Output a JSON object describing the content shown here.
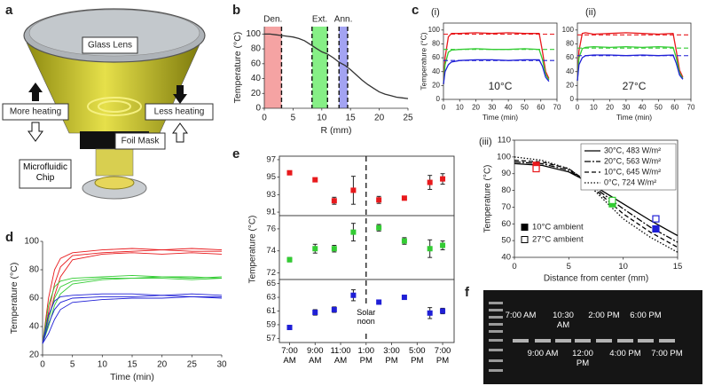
{
  "diagram": {
    "panel": "a",
    "lens": "Glass Lens",
    "more": "More heating",
    "less": "Less heating",
    "mask": "Foil Mask",
    "chip": "Microfluidic Chip"
  },
  "gel": {
    "panel": "f",
    "lanes_top": [
      "7:00 AM",
      "10:30 AM",
      "2:00 PM",
      "6:00 PM"
    ],
    "lanes_bottom": [
      "9:00 AM",
      "12:00 PM",
      "4:00 PM",
      "7:00 PM"
    ]
  },
  "chart_data": [
    {
      "type": "line",
      "panel": "b",
      "xlabel": "R (mm)",
      "ylabel": "Temperature (°C)",
      "xlim": [
        0,
        25
      ],
      "xticks": [
        0,
        5,
        10,
        15,
        20,
        25
      ],
      "ylim": [
        0,
        110
      ],
      "yticks": [
        0,
        20,
        40,
        60,
        80,
        100
      ],
      "x": [
        0,
        1,
        2,
        3,
        4,
        5,
        6,
        7,
        8,
        9,
        10,
        11,
        12,
        13,
        14,
        15,
        16,
        17,
        18,
        19,
        20,
        21,
        22,
        23,
        24,
        25
      ],
      "series": [
        {
          "color": "#333333",
          "values": [
            100,
            100,
            99,
            98,
            97,
            96,
            94,
            91,
            86,
            81,
            76,
            73,
            68,
            62,
            58,
            52,
            45,
            38,
            32,
            27,
            22,
            19,
            17,
            15,
            14,
            13
          ]
        }
      ],
      "bands": [
        {
          "label": "Den.",
          "x": [
            0,
            3
          ],
          "color": "#f5a3a3"
        },
        {
          "label": "Ext.",
          "x": [
            8.3,
            11
          ],
          "color": "#86ef86"
        },
        {
          "label": "Ann.",
          "x": [
            13,
            14.5
          ],
          "color": "#a3a3f2"
        }
      ]
    },
    {
      "type": "line",
      "panel": "c",
      "subtitle": "(i)",
      "annotation": "10°C",
      "xlabel": "Time (min)",
      "ylabel": "Temperature (°C)",
      "xlim": [
        0,
        70
      ],
      "xticks": [
        0,
        10,
        20,
        30,
        40,
        50,
        60,
        70
      ],
      "ylim": [
        0,
        110
      ],
      "yticks": [
        0,
        20,
        40,
        60,
        80,
        100
      ],
      "x": [
        0,
        1,
        3,
        5,
        10,
        20,
        30,
        40,
        50,
        59,
        61,
        63,
        65
      ],
      "series": [
        {
          "color": "#e8191c",
          "target": 94,
          "values": [
            22,
            60,
            90,
            95,
            95,
            96,
            95,
            96,
            95,
            95,
            70,
            40,
            30
          ]
        },
        {
          "color": "#33cc33",
          "target": 72,
          "values": [
            22,
            50,
            68,
            71,
            72,
            73,
            72,
            72,
            73,
            72,
            58,
            36,
            28
          ]
        },
        {
          "color": "#1f1fd6",
          "target": 56,
          "values": [
            22,
            40,
            50,
            54,
            56,
            57,
            57,
            56,
            57,
            57,
            48,
            32,
            26
          ]
        }
      ]
    },
    {
      "type": "line",
      "subtitle": "(ii)",
      "annotation": "27°C",
      "xlabel": "Time (min)",
      "xlim": [
        0,
        70
      ],
      "xticks": [
        0,
        10,
        20,
        30,
        40,
        50,
        60,
        70
      ],
      "ylim": [
        0,
        110
      ],
      "yticks": [
        0,
        20,
        40,
        60,
        80,
        100
      ],
      "x": [
        0,
        1,
        3,
        5,
        10,
        20,
        30,
        40,
        50,
        59,
        61,
        63,
        65
      ],
      "series": [
        {
          "color": "#e8191c",
          "target": 93,
          "values": [
            27,
            70,
            95,
            96,
            94,
            95,
            96,
            95,
            94,
            95,
            70,
            42,
            32
          ]
        },
        {
          "color": "#33cc33",
          "target": 74,
          "values": [
            27,
            60,
            73,
            75,
            76,
            75,
            76,
            75,
            76,
            75,
            60,
            38,
            30
          ]
        },
        {
          "color": "#1f1fd6",
          "target": 63,
          "values": [
            27,
            50,
            60,
            63,
            64,
            64,
            63,
            64,
            63,
            64,
            52,
            35,
            29
          ]
        }
      ]
    },
    {
      "type": "line",
      "subtitle": "(iii)",
      "xlabel": "Distance from center (mm)",
      "ylabel": "Temperature (°C)",
      "legend": "upper right",
      "xlim": [
        0,
        15
      ],
      "xticks": [
        0,
        5,
        10,
        15
      ],
      "ylim": [
        40,
        110
      ],
      "yticks": [
        40,
        50,
        60,
        70,
        80,
        90,
        100,
        110
      ],
      "x": [
        0,
        2.5,
        5,
        6.5,
        7.5,
        10,
        12.5,
        15
      ],
      "series": [
        {
          "name": "30°C, 483 W/m²",
          "color": "#000000",
          "dash": "solid",
          "values": [
            96,
            95,
            91,
            86,
            82,
            72,
            62,
            53
          ]
        },
        {
          "name": "20°C, 563 W/m²",
          "color": "#000000",
          "dash": "dashdot",
          "values": [
            97,
            96,
            92,
            86,
            81,
            69,
            58,
            49
          ]
        },
        {
          "name": "10°C, 645 W/m²",
          "color": "#000000",
          "dash": "dashed",
          "values": [
            98,
            97,
            93,
            86,
            80,
            66,
            55,
            46
          ]
        },
        {
          "name": "0°C, 724 W/m²",
          "color": "#000000",
          "dash": "dotted",
          "values": [
            100,
            98,
            93,
            86,
            79,
            63,
            52,
            43
          ]
        }
      ],
      "markers": [
        {
          "name": "10°C ambient",
          "filled": true,
          "x": [
            2,
            9,
            13
          ],
          "values": [
            95,
            72,
            57
          ],
          "colors": [
            "#e8191c",
            "#33cc33",
            "#1f1fd6"
          ]
        },
        {
          "name": "27°C ambient",
          "filled": false,
          "x": [
            2,
            9,
            13
          ],
          "values": [
            93,
            74,
            63
          ],
          "colors": [
            "#e8191c",
            "#33cc33",
            "#1f1fd6"
          ]
        }
      ]
    },
    {
      "type": "line",
      "panel": "d",
      "xlabel": "Time (min)",
      "ylabel": "Temperature (°C)",
      "xlim": [
        0,
        30
      ],
      "xticks": [
        0,
        5,
        10,
        15,
        20,
        25,
        30
      ],
      "ylim": [
        20,
        100
      ],
      "yticks": [
        20,
        40,
        60,
        80,
        100
      ],
      "x": [
        0,
        1,
        2,
        3,
        5,
        10,
        15,
        20,
        25,
        30
      ],
      "series": [
        {
          "color": "#e8191c",
          "values": [
            28,
            60,
            80,
            88,
            92,
            94,
            95,
            94,
            95,
            94
          ]
        },
        {
          "color": "#e8191c",
          "values": [
            28,
            50,
            70,
            82,
            90,
            92,
            93,
            94,
            93,
            93
          ]
        },
        {
          "color": "#e8191c",
          "values": [
            28,
            45,
            62,
            75,
            87,
            91,
            92,
            91,
            92,
            91
          ]
        },
        {
          "color": "#33cc33",
          "values": [
            28,
            55,
            68,
            72,
            74,
            75,
            76,
            75,
            74,
            75
          ]
        },
        {
          "color": "#33cc33",
          "values": [
            28,
            45,
            60,
            68,
            72,
            74,
            74,
            75,
            75,
            74
          ]
        },
        {
          "color": "#33cc33",
          "values": [
            28,
            40,
            55,
            63,
            70,
            73,
            74,
            74,
            73,
            74
          ]
        },
        {
          "color": "#1f1fd6",
          "values": [
            28,
            48,
            58,
            61,
            62,
            63,
            63,
            62,
            63,
            62
          ]
        },
        {
          "color": "#1f1fd6",
          "values": [
            28,
            42,
            52,
            57,
            60,
            61,
            61,
            62,
            61,
            61
          ]
        },
        {
          "color": "#1f1fd6",
          "values": [
            28,
            35,
            45,
            52,
            57,
            59,
            60,
            60,
            61,
            60
          ]
        }
      ]
    },
    {
      "type": "scatter",
      "panel": "e",
      "ylabel": "Temperature (°C)",
      "annotation": "Solar noon",
      "noon": 13,
      "x": [
        7,
        9,
        10.5,
        12,
        14,
        16,
        18,
        19
      ],
      "xlim": [
        6.2,
        19.9
      ],
      "xticks": [
        {
          "value": 7,
          "label": "7:00 AM"
        },
        {
          "value": 9,
          "label": "9:00 AM"
        },
        {
          "value": 11,
          "label": "11:00 AM"
        },
        {
          "value": 13,
          "label": "1:00 PM"
        },
        {
          "value": 15,
          "label": "3:00 PM"
        },
        {
          "value": 17,
          "label": "5:00 PM"
        },
        {
          "value": 19,
          "label": "7:00 PM"
        }
      ],
      "panels": [
        {
          "ylim": [
            90.6,
            97.4
          ],
          "yticks": [
            91,
            93,
            95,
            97
          ],
          "series": [
            {
              "color": "#e8191c",
              "values": [
                95.5,
                94.7,
                92.3,
                93.5,
                92.4,
                92.6,
                94.4,
                94.8
              ],
              "errors": [
                0.2,
                0.2,
                0.4,
                1.6,
                0.4,
                0.2,
                0.8,
                0.6
              ]
            }
          ]
        },
        {
          "ylim": [
            71.4,
            77.2
          ],
          "yticks": [
            72,
            74,
            76
          ],
          "series": [
            {
              "color": "#33cc33",
              "values": [
                73.2,
                74.2,
                74.2,
                75.7,
                76.1,
                74.9,
                74.2,
                74.5
              ],
              "errors": [
                0.2,
                0.4,
                0.3,
                0.8,
                0.3,
                0.3,
                0.8,
                0.4
              ]
            }
          ]
        },
        {
          "ylim": [
            56.4,
            65.6
          ],
          "yticks": [
            57,
            59,
            61,
            63,
            65
          ],
          "series": [
            {
              "color": "#1f1fd6",
              "values": [
                58.6,
                60.8,
                61.2,
                63.3,
                62.3,
                63.0,
                60.7,
                61.0
              ],
              "errors": [
                0.2,
                0.4,
                0.4,
                0.8,
                0.3,
                0.3,
                0.8,
                0.4
              ]
            }
          ]
        }
      ]
    }
  ]
}
